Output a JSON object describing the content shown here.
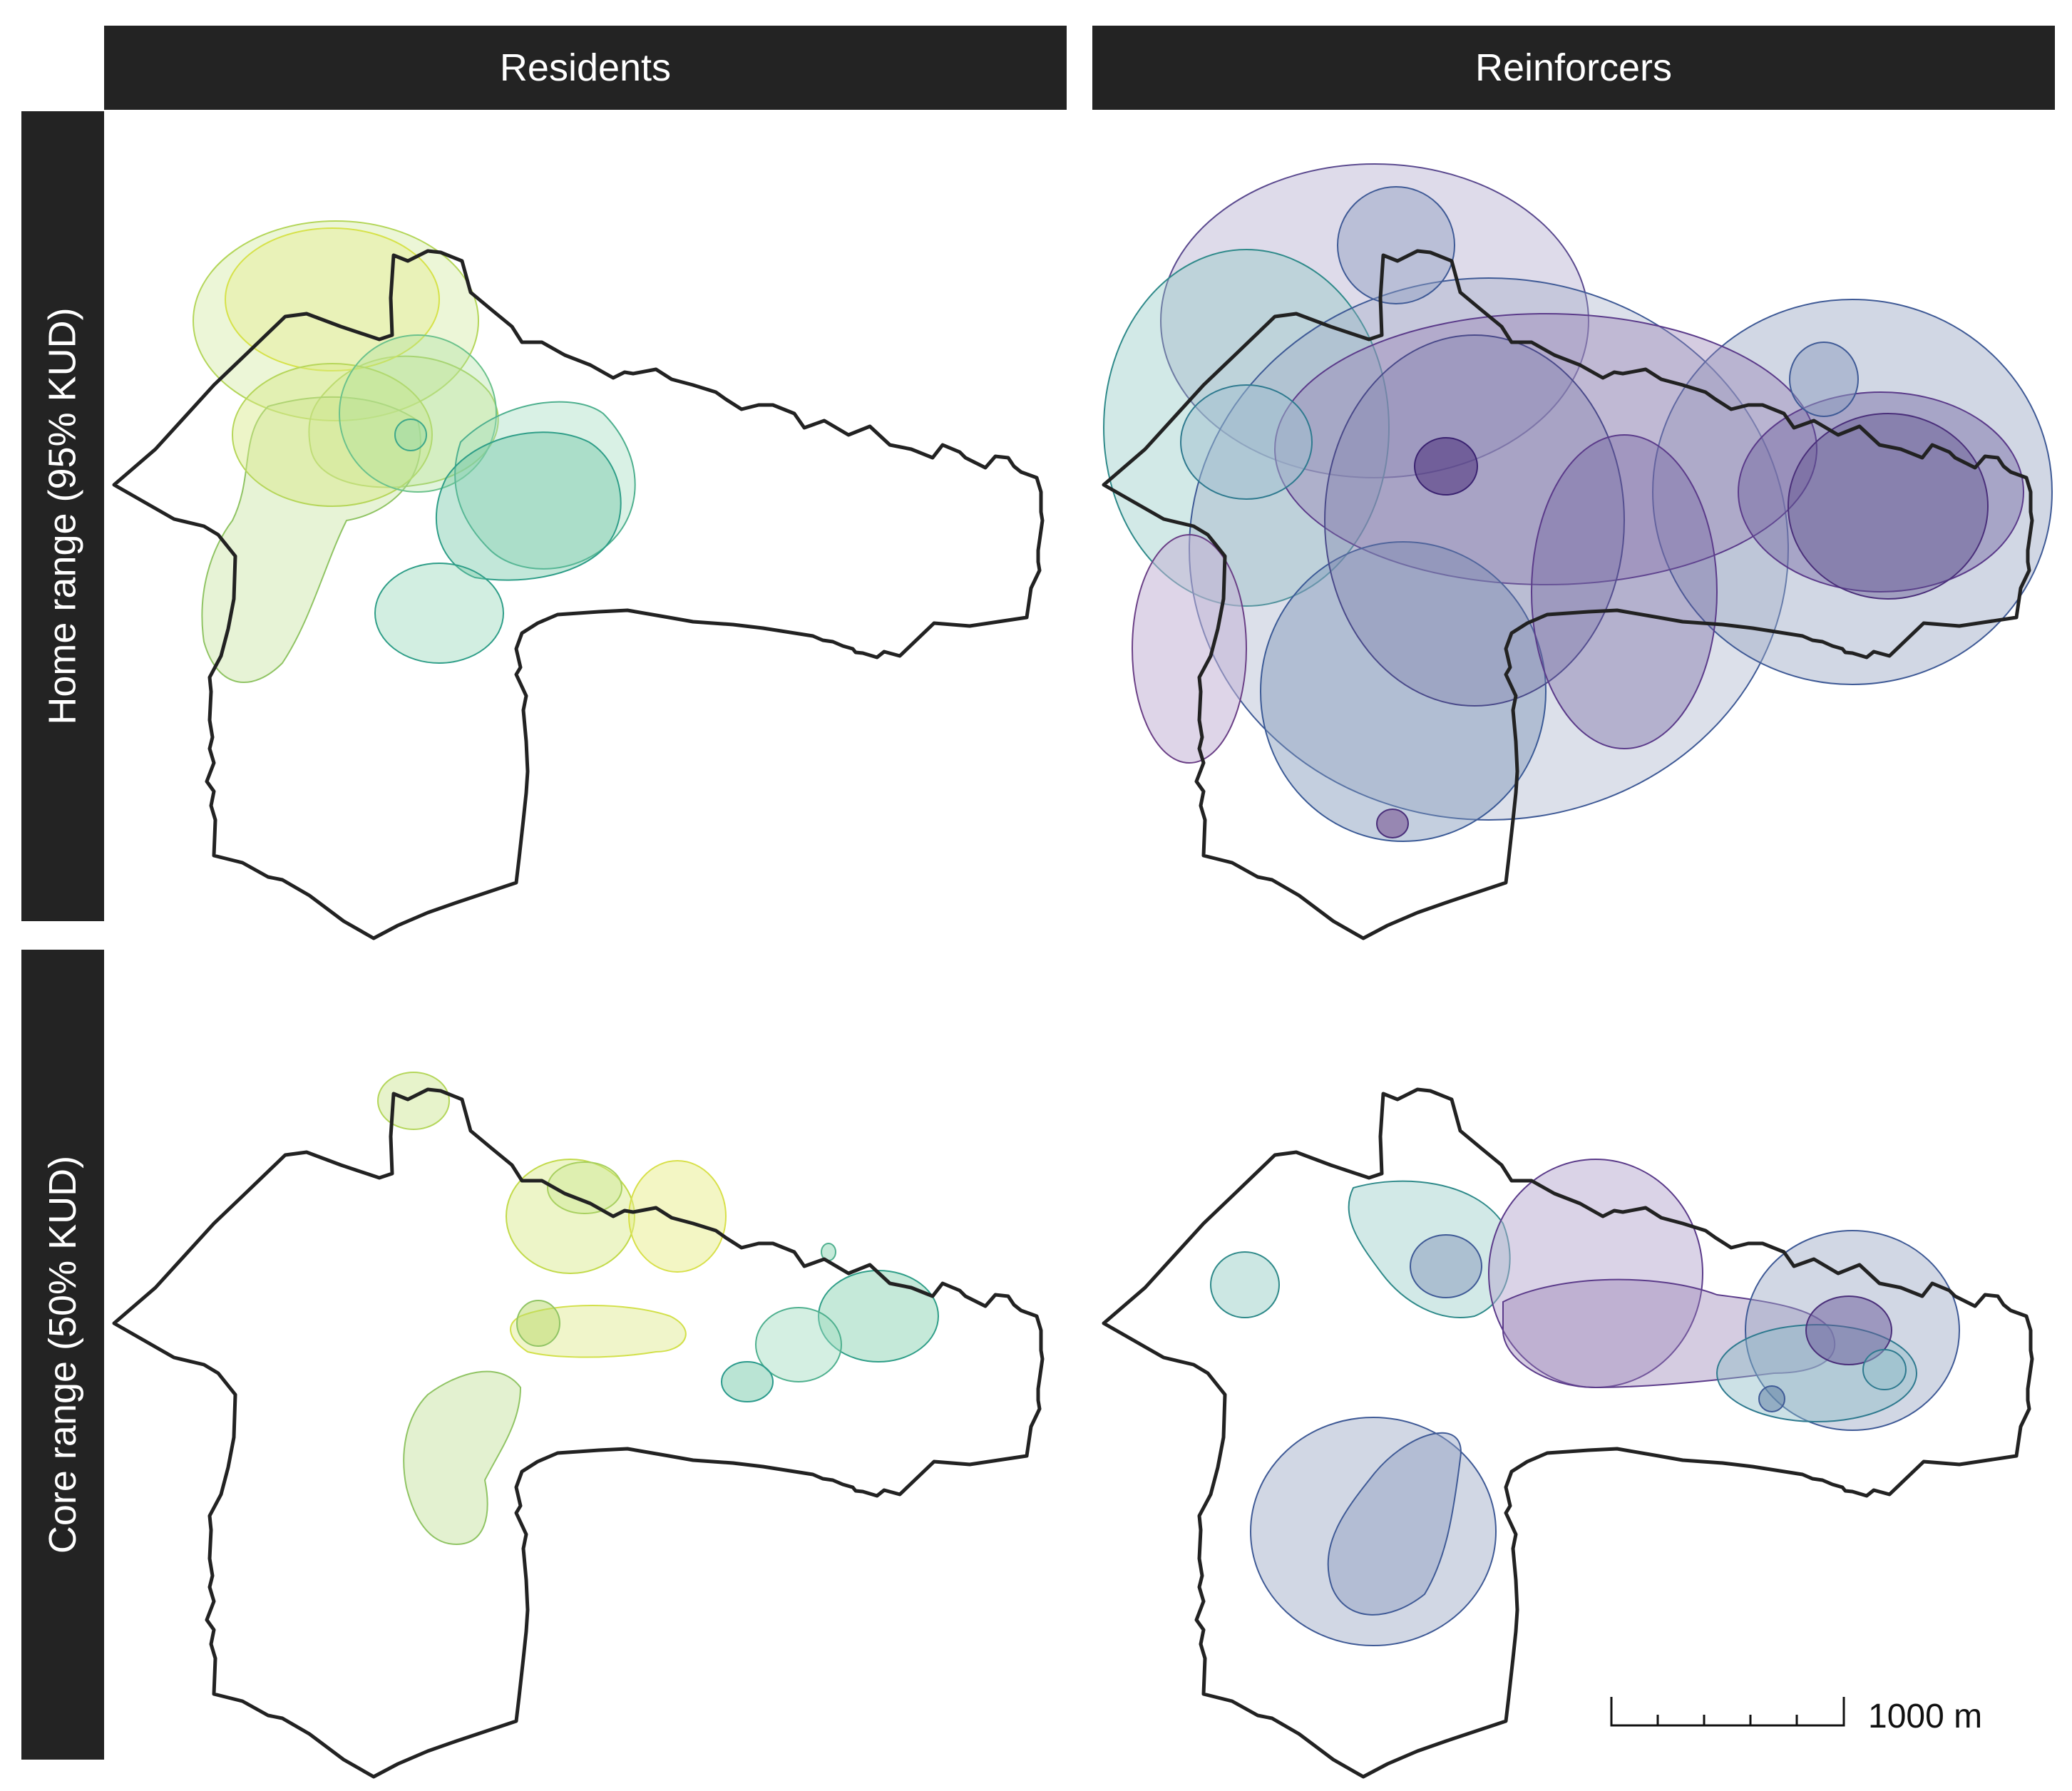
{
  "facets": {
    "columns": [
      "Residents",
      "Reinforcers"
    ],
    "rows": [
      "Home range (95% KUD)",
      "Core range (50% KUD)"
    ]
  },
  "scale_bar": {
    "label": "1000 m",
    "length_m": 1000,
    "ticks": 5
  },
  "colors": {
    "boundary": "#222222",
    "strip_bg": "#232323",
    "residents_palette": [
      "#d7e64a",
      "#b7d957",
      "#8fcb6a",
      "#5fbf85",
      "#35ad8f",
      "#2b9a8c"
    ],
    "reinforcers_palette": [
      "#3a8a8f",
      "#4a6f9a",
      "#535c99",
      "#5b4a8f",
      "#6a3f86",
      "#7a6a9e"
    ]
  }
}
